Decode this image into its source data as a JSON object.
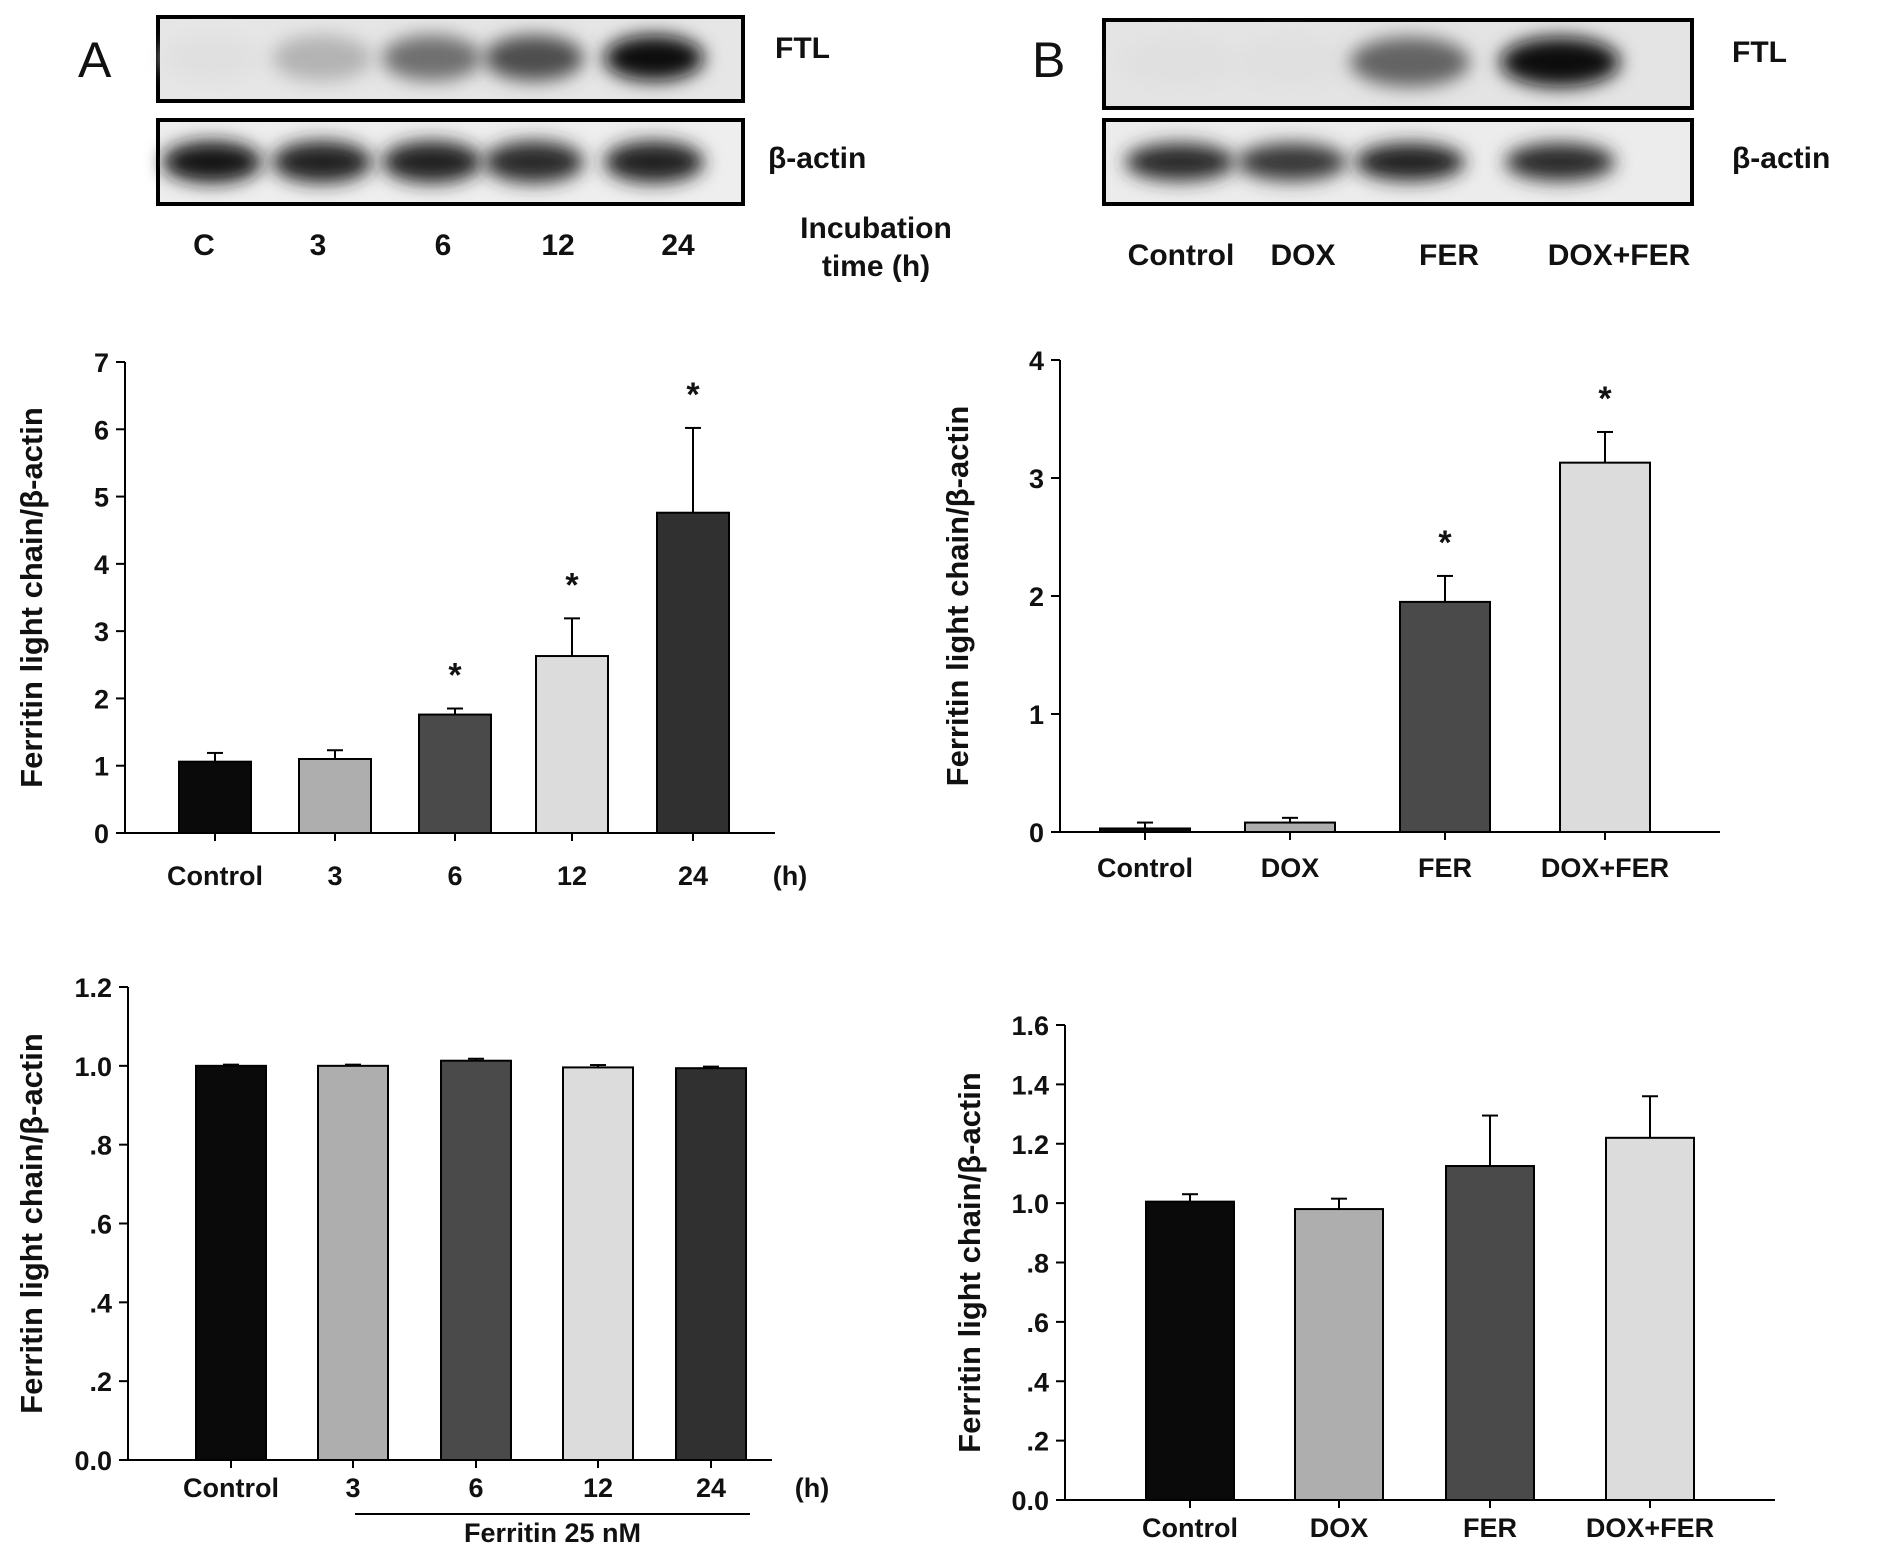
{
  "blots": {
    "A": {
      "panel_label": "A",
      "rows": [
        "FTL",
        "β-actin"
      ],
      "lanes": [
        "C",
        "3",
        "6",
        "12",
        "24"
      ],
      "axis_label_line1": "Incubation",
      "axis_label_line2": "time (h)",
      "ftl_intensity": [
        0.05,
        0.25,
        0.55,
        0.7,
        1.0
      ],
      "actin_intensity": [
        0.95,
        0.9,
        0.9,
        0.85,
        0.9
      ]
    },
    "B": {
      "panel_label": "B",
      "rows": [
        "FTL",
        "β-actin"
      ],
      "lanes": [
        "Control",
        "DOX",
        "FER",
        "DOX+FER"
      ],
      "ftl_intensity": [
        0.05,
        0.05,
        0.6,
        1.0
      ],
      "actin_intensity": [
        0.85,
        0.8,
        0.9,
        0.85
      ]
    }
  },
  "chart_data": [
    {
      "type": "bar",
      "categories": [
        "Control",
        "3",
        "6",
        "12",
        "24"
      ],
      "unit_label": "(h)",
      "values": [
        1.06,
        1.1,
        1.76,
        2.63,
        4.76
      ],
      "errors": [
        0.13,
        0.13,
        0.09,
        0.56,
        1.26
      ],
      "significant": [
        false,
        false,
        true,
        true,
        true
      ],
      "sig_marker": "*",
      "ylabel": "Ferritin light chain/β-actin",
      "ylim": [
        0,
        7
      ],
      "yticks": [
        "0",
        "1",
        "2",
        "3",
        "4",
        "5",
        "6",
        "7"
      ],
      "colors": [
        "#0a0a0a",
        "#aeaeae",
        "#4a4a4a",
        "#dcdcdc",
        "#303030"
      ]
    },
    {
      "type": "bar",
      "categories": [
        "Control",
        "DOX",
        "FER",
        "DOX+FER"
      ],
      "values": [
        0.03,
        0.08,
        1.95,
        3.13
      ],
      "errors": [
        0.05,
        0.04,
        0.22,
        0.26
      ],
      "significant": [
        false,
        false,
        true,
        true
      ],
      "sig_marker": "*",
      "ylabel": "Ferritin light chain/β-actin",
      "ylim": [
        0,
        4
      ],
      "yticks": [
        "0",
        "1",
        "2",
        "3",
        "4"
      ],
      "colors": [
        "#0a0a0a",
        "#aeaeae",
        "#4a4a4a",
        "#dcdcdc"
      ]
    },
    {
      "type": "bar",
      "categories": [
        "Control",
        "3",
        "6",
        "12",
        "24"
      ],
      "unit_label": "(h)",
      "group_label": "Ferritin 25 nM",
      "values": [
        1.0,
        1.0,
        1.013,
        0.996,
        0.994
      ],
      "errors": [
        0.003,
        0.003,
        0.005,
        0.006,
        0.004
      ],
      "ylabel": "Ferritin light chain/β-actin",
      "ylim": [
        0,
        1.2
      ],
      "yticks": [
        "0.0",
        ".2",
        ".4",
        ".6",
        ".8",
        "1.0",
        "1.2"
      ],
      "colors": [
        "#0a0a0a",
        "#aeaeae",
        "#4a4a4a",
        "#dcdcdc",
        "#303030"
      ]
    },
    {
      "type": "bar",
      "categories": [
        "Control",
        "DOX",
        "FER",
        "DOX+FER"
      ],
      "values": [
        1.005,
        0.98,
        1.125,
        1.22
      ],
      "errors": [
        0.025,
        0.035,
        0.17,
        0.14
      ],
      "ylabel": "Ferritin light chain/β-actin",
      "ylim": [
        0,
        1.6
      ],
      "yticks": [
        "0.0",
        ".2",
        ".4",
        ".6",
        ".8",
        "1.0",
        "1.2",
        "1.4",
        "1.6"
      ],
      "colors": [
        "#0a0a0a",
        "#aeaeae",
        "#4a4a4a",
        "#dcdcdc"
      ]
    }
  ]
}
